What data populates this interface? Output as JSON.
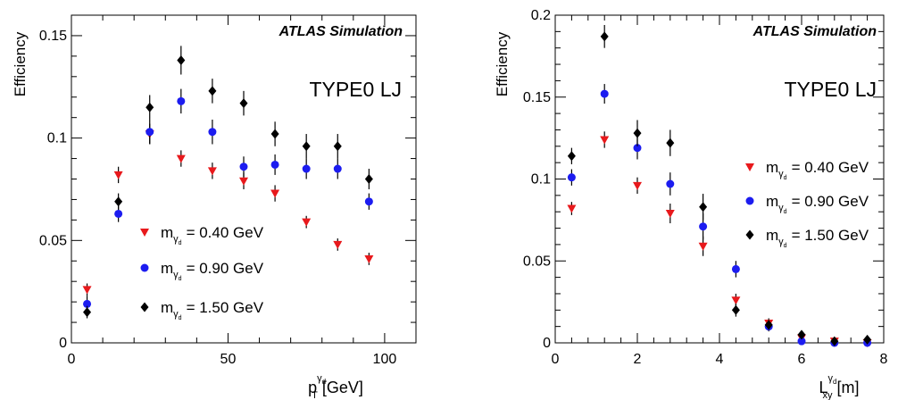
{
  "chart_data": [
    {
      "type": "scatter",
      "label": "ATLAS Simulation",
      "annotation": "TYPE0 LJ",
      "ylabel": "Efficiency",
      "xlabel": {
        "main": "p",
        "sub": "T",
        "sup": "γ",
        "supsub": "d",
        "unit": " [GeV]"
      },
      "xlim": [
        0,
        110
      ],
      "ylim": [
        0,
        0.16
      ],
      "xticks": [
        0,
        50,
        100
      ],
      "xtick_labels": [
        "0",
        "50",
        "100"
      ],
      "yticks": [
        0,
        0.05,
        0.1,
        0.15
      ],
      "ytick_labels": [
        "0",
        "0.05",
        "0.1",
        "0.15"
      ],
      "grid": false,
      "legend_placement": "lower-center",
      "x": [
        5,
        15,
        25,
        35,
        45,
        55,
        65,
        75,
        85,
        95
      ],
      "series": [
        {
          "name": "= 0.40 GeV",
          "marker": "triangle-down",
          "color": "#e8191c",
          "values": [
            0.026,
            0.082,
            0.102,
            0.09,
            0.084,
            0.079,
            0.073,
            0.059,
            0.048,
            0.041
          ],
          "errors": [
            0.003,
            0.004,
            0.005,
            0.004,
            0.004,
            0.004,
            0.004,
            0.003,
            0.003,
            0.003
          ]
        },
        {
          "name": "= 0.90 GeV",
          "marker": "circle",
          "color": "#1c1cf0",
          "values": [
            0.019,
            0.063,
            0.103,
            0.118,
            0.103,
            0.086,
            0.087,
            0.085,
            0.085,
            0.069
          ],
          "errors": [
            0.004,
            0.004,
            0.006,
            0.006,
            0.006,
            0.005,
            0.005,
            0.005,
            0.005,
            0.004
          ]
        },
        {
          "name": "= 1.50 GeV",
          "marker": "diamond",
          "color": "#000000",
          "values": [
            0.015,
            0.069,
            0.115,
            0.138,
            0.123,
            0.117,
            0.102,
            0.096,
            0.096,
            0.08
          ],
          "errors": [
            0.003,
            0.004,
            0.006,
            0.007,
            0.006,
            0.006,
            0.006,
            0.006,
            0.006,
            0.005
          ]
        }
      ]
    },
    {
      "type": "scatter",
      "label": "ATLAS Simulation",
      "annotation": "TYPE0 LJ",
      "ylabel": "Efficiency",
      "xlabel": {
        "main": "L",
        "sub": "xy",
        "sup": "γ",
        "supsub": "d",
        "unit": " [m]"
      },
      "xlim": [
        0,
        8
      ],
      "ylim": [
        0,
        0.2
      ],
      "xticks": [
        0,
        2,
        4,
        6,
        8
      ],
      "xtick_labels": [
        "0",
        "2",
        "4",
        "6",
        "8"
      ],
      "yticks": [
        0,
        0.05,
        0.1,
        0.15,
        0.2
      ],
      "ytick_labels": [
        "0",
        "0.05",
        "0.1",
        "0.15",
        "0.2"
      ],
      "grid": false,
      "legend_placement": "right",
      "x": [
        0.4,
        1.2,
        2.0,
        2.8,
        3.6,
        4.4,
        5.2,
        6.0,
        6.8,
        7.6
      ],
      "series": [
        {
          "name": "= 0.40 GeV",
          "marker": "triangle-down",
          "color": "#e8191c",
          "values": [
            0.082,
            0.124,
            0.096,
            0.079,
            0.059,
            0.026,
            0.012,
            0.003,
            0.001,
            0.0
          ],
          "errors": [
            0.004,
            0.005,
            0.005,
            0.006,
            0.006,
            0.004,
            0.003,
            0.002,
            0.001,
            0.001
          ]
        },
        {
          "name": "= 0.90 GeV",
          "marker": "circle",
          "color": "#1c1cf0",
          "values": [
            0.101,
            0.152,
            0.119,
            0.097,
            0.071,
            0.045,
            0.01,
            0.001,
            0.0,
            0.0
          ],
          "errors": [
            0.005,
            0.006,
            0.007,
            0.007,
            0.008,
            0.005,
            0.003,
            0.001,
            0.001,
            0.001
          ]
        },
        {
          "name": "= 1.50 GeV",
          "marker": "diamond",
          "color": "#000000",
          "values": [
            0.114,
            0.187,
            0.128,
            0.122,
            0.083,
            0.02,
            0.011,
            0.005,
            0.001,
            0.002
          ],
          "errors": [
            0.005,
            0.007,
            0.008,
            0.008,
            0.008,
            0.004,
            0.003,
            0.002,
            0.001,
            0.001
          ]
        }
      ]
    }
  ]
}
